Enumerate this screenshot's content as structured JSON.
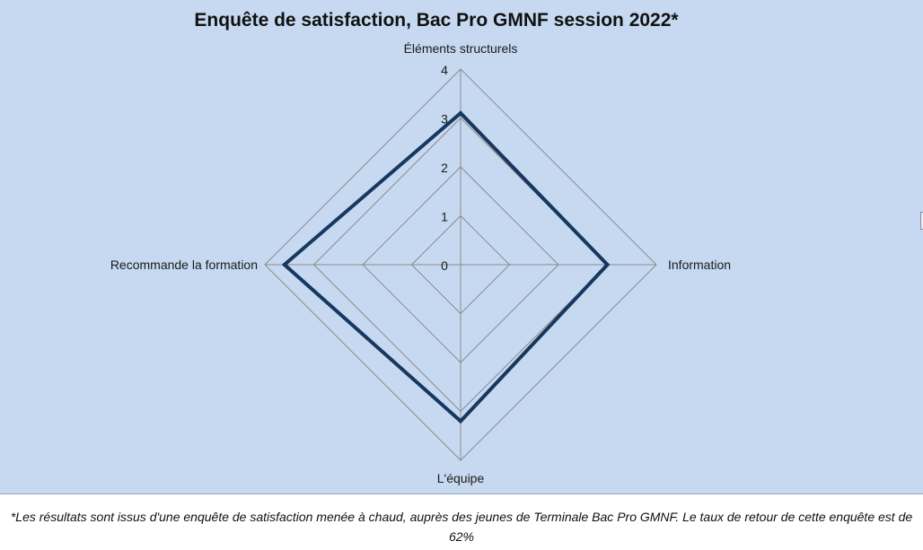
{
  "chart_data": {
    "type": "radar",
    "title": "Enquête de satisfaction, Bac Pro GMNF session 2022*",
    "categories": [
      "Éléments structurels",
      "Information",
      "L'équipe",
      "Recommande la formation"
    ],
    "series": [
      {
        "values": [
          3.1,
          3.0,
          3.2,
          3.6
        ]
      }
    ],
    "rlim": [
      0,
      4
    ],
    "ticks": [
      "0",
      "1",
      "2",
      "3",
      "4"
    ],
    "grid": true,
    "legend": "none",
    "colors": {
      "series": "#17375e",
      "grid": "#8c8c8c",
      "background": "#c6d9f0"
    }
  },
  "footnote": "*Les résultats sont issus d'une enquête de satisfaction menée à chaud, auprès des jeunes de Terminale Bac Pro GMNF. Le taux de retour de cette enquête est de 62%"
}
